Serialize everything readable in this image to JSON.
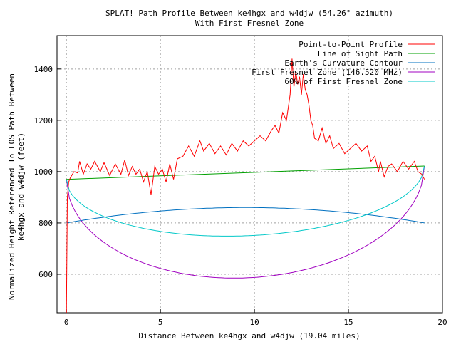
{
  "chart_data": {
    "type": "line",
    "title": "SPLAT! Path Profile Between ke4hgx and w4djw (54.26° azimuth)",
    "subtitle": "With First Fresnel Zone",
    "xlabel": "Distance Between ke4hgx and w4djw (19.04 miles)",
    "ylabel": "Normalized Height Referenced To LOS Path Between\nke4hgx and w4djw (feet)",
    "xlim": [
      -0.5,
      20
    ],
    "ylim": [
      450,
      1530
    ],
    "xticks": [
      "0",
      "5",
      "10",
      "15",
      "20"
    ],
    "yticks": [
      "600",
      "800",
      "1000",
      "1200",
      "1400"
    ],
    "grid": true,
    "legend_position": "top-right",
    "series": [
      {
        "name": "Point-to-Point Profile",
        "color": "#ff0000",
        "x": [
          0,
          0.05,
          0.12,
          0.2,
          0.4,
          0.6,
          0.7,
          0.9,
          1.1,
          1.3,
          1.5,
          1.8,
          2.0,
          2.3,
          2.6,
          2.9,
          3.1,
          3.3,
          3.5,
          3.7,
          3.9,
          4.1,
          4.3,
          4.5,
          4.7,
          4.9,
          5.1,
          5.3,
          5.5,
          5.7,
          5.9,
          6.2,
          6.5,
          6.8,
          7.1,
          7.3,
          7.6,
          7.9,
          8.2,
          8.5,
          8.8,
          9.1,
          9.4,
          9.7,
          10.0,
          10.3,
          10.6,
          10.9,
          11.1,
          11.3,
          11.5,
          11.7,
          11.9,
          12.0,
          12.1,
          12.2,
          12.3,
          12.4,
          12.5,
          12.6,
          12.7,
          12.8,
          12.9,
          13.0,
          13.1,
          13.2,
          13.4,
          13.6,
          13.8,
          14.0,
          14.2,
          14.5,
          14.8,
          15.1,
          15.4,
          15.7,
          16.0,
          16.2,
          16.4,
          16.6,
          16.7,
          16.9,
          17.1,
          17.3,
          17.6,
          17.9,
          18.2,
          18.5,
          18.7,
          18.9,
          19.04
        ],
        "values": [
          450,
          900,
          960,
          975,
          1000,
          995,
          1040,
          990,
          1030,
          1010,
          1040,
          1000,
          1035,
          985,
          1030,
          990,
          1045,
          985,
          1020,
          990,
          1010,
          960,
          1000,
          910,
          1020,
          990,
          1010,
          960,
          1030,
          970,
          1050,
          1060,
          1100,
          1060,
          1120,
          1080,
          1110,
          1070,
          1100,
          1065,
          1110,
          1080,
          1120,
          1100,
          1120,
          1140,
          1120,
          1160,
          1180,
          1150,
          1230,
          1200,
          1300,
          1440,
          1330,
          1390,
          1340,
          1370,
          1300,
          1380,
          1320,
          1300,
          1260,
          1200,
          1180,
          1130,
          1120,
          1170,
          1110,
          1140,
          1090,
          1110,
          1070,
          1090,
          1110,
          1080,
          1100,
          1040,
          1060,
          1000,
          1040,
          980,
          1020,
          1030,
          1000,
          1040,
          1010,
          1040,
          1000,
          990,
          970
        ]
      },
      {
        "name": "Line of Sight Path",
        "color": "#00a000",
        "x": [
          0,
          19.04
        ],
        "values": [
          970,
          1022
        ]
      },
      {
        "name": "Earth's Curvature Contour",
        "color": "#0070c0",
        "x": [
          0,
          19.04
        ],
        "values": [
          800,
          800
        ],
        "peak": 860
      },
      {
        "name": "First Fresnel Zone (146.520 MHz)",
        "color": "#a000c0",
        "x": [
          0,
          19.04
        ],
        "values": [
          970,
          1022
        ],
        "radius_max": 410
      },
      {
        "name": "60% of First Fresnel Zone",
        "color": "#00c8c8",
        "x": [
          0,
          19.04
        ],
        "values": [
          970,
          1022
        ],
        "radius_max": 246
      }
    ]
  }
}
